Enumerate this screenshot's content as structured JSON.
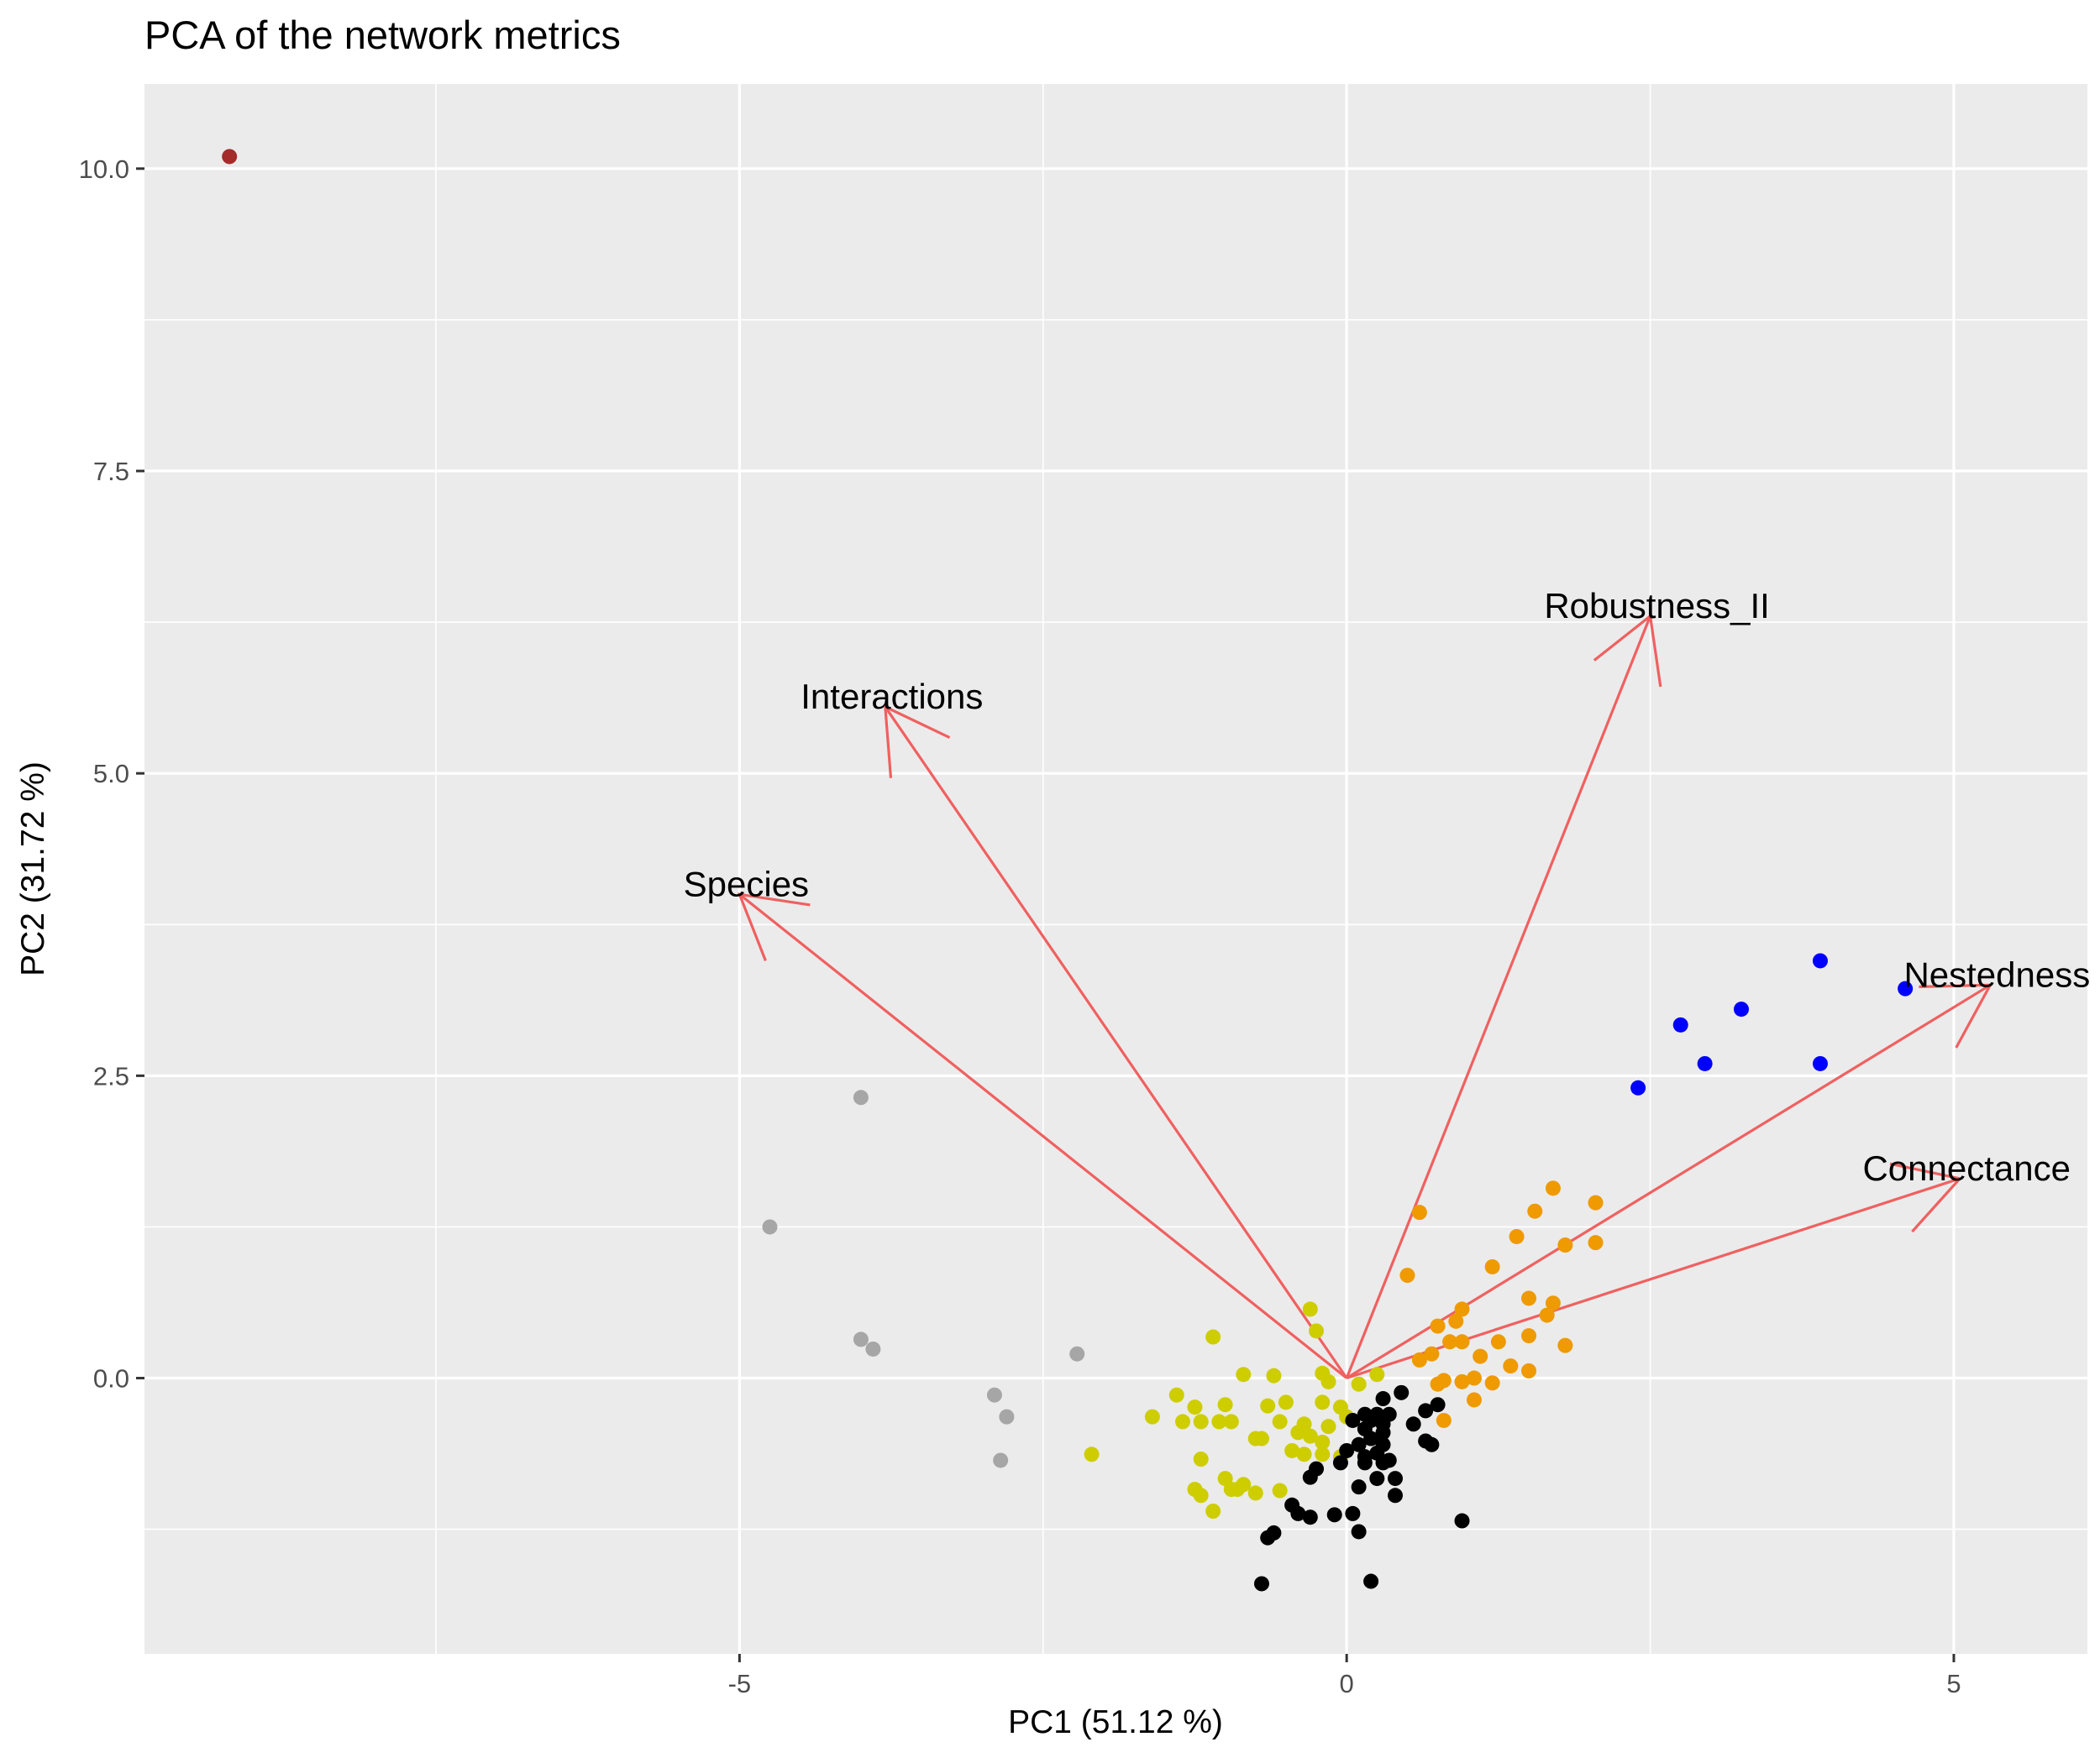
{
  "chart_data": {
    "type": "scatter",
    "title": "PCA of the network metrics",
    "xlabel": "PC1 (51.12 %)",
    "ylabel": "PC2 (31.72 %)",
    "xlim": [
      -9.9,
      6.1
    ],
    "ylim": [
      -2.28,
      10.7
    ],
    "x_ticks": [
      -5,
      0,
      5
    ],
    "x_tick_labels": [
      "-5",
      "0",
      "5"
    ],
    "y_ticks": [
      0.0,
      2.5,
      5.0,
      7.5,
      10.0
    ],
    "y_tick_labels": [
      "0.0",
      "2.5",
      "5.0",
      "7.5",
      "10.0"
    ],
    "grid": true,
    "legend": "none",
    "colors": {
      "panel_background": "#EBEBEB",
      "gridline": "#FFFFFF",
      "arrow": "#F06060",
      "brown": "#A52A2A",
      "gray": "#A6A6A6",
      "yellow": "#CDCD00",
      "black": "#000000",
      "orange": "#EE9A00",
      "blue": "#0000FF",
      "text": "#000000",
      "tick_text": "#4D4D4D"
    },
    "series": [
      {
        "color": "brown",
        "points": [
          [
            -9.2,
            10.1
          ]
        ]
      },
      {
        "color": "gray",
        "points": [
          [
            -4.0,
            2.32
          ],
          [
            -4.75,
            1.25
          ],
          [
            -4.0,
            0.32
          ],
          [
            -3.9,
            0.24
          ],
          [
            -2.22,
            0.2
          ],
          [
            -2.9,
            -0.14
          ],
          [
            -2.8,
            -0.32
          ],
          [
            -2.85,
            -0.68
          ]
        ]
      },
      {
        "color": "blue",
        "points": [
          [
            3.9,
            3.45
          ],
          [
            4.6,
            3.22
          ],
          [
            2.75,
            2.92
          ],
          [
            3.25,
            3.05
          ],
          [
            2.95,
            2.6
          ],
          [
            3.9,
            2.6
          ],
          [
            2.4,
            2.4
          ]
        ]
      },
      {
        "color": "orange",
        "points": [
          [
            0.6,
            1.37
          ],
          [
            1.7,
            1.57
          ],
          [
            1.55,
            1.38
          ],
          [
            2.05,
            1.45
          ],
          [
            1.4,
            1.17
          ],
          [
            1.8,
            1.1
          ],
          [
            2.05,
            1.12
          ],
          [
            1.2,
            0.92
          ],
          [
            0.5,
            0.85
          ],
          [
            0.95,
            0.57
          ],
          [
            1.5,
            0.66
          ],
          [
            1.7,
            0.62
          ],
          [
            0.75,
            0.43
          ],
          [
            0.9,
            0.47
          ],
          [
            1.65,
            0.52
          ],
          [
            0.85,
            0.3
          ],
          [
            0.95,
            0.3
          ],
          [
            1.25,
            0.3
          ],
          [
            1.5,
            0.35
          ],
          [
            1.8,
            0.27
          ],
          [
            0.7,
            0.2
          ],
          [
            0.6,
            0.15
          ],
          [
            1.1,
            0.18
          ],
          [
            1.35,
            0.1
          ],
          [
            1.5,
            0.06
          ],
          [
            0.75,
            -0.05
          ],
          [
            0.8,
            -0.02
          ],
          [
            0.95,
            -0.03
          ],
          [
            1.05,
            0.0
          ],
          [
            1.2,
            -0.04
          ],
          [
            1.05,
            -0.18
          ],
          [
            0.8,
            -0.35
          ]
        ]
      },
      {
        "color": "yellow",
        "points": [
          [
            -0.3,
            0.57
          ],
          [
            -0.25,
            0.39
          ],
          [
            -1.1,
            0.34
          ],
          [
            -0.85,
            0.03
          ],
          [
            -0.6,
            0.02
          ],
          [
            -0.2,
            0.04
          ],
          [
            -0.15,
            -0.03
          ],
          [
            0.1,
            -0.05
          ],
          [
            0.25,
            0.03
          ],
          [
            -1.4,
            -0.14
          ],
          [
            -1.25,
            -0.24
          ],
          [
            -1.6,
            -0.32
          ],
          [
            -1.35,
            -0.36
          ],
          [
            -1.2,
            -0.36
          ],
          [
            -1.05,
            -0.36
          ],
          [
            -0.95,
            -0.36
          ],
          [
            -1.0,
            -0.22
          ],
          [
            -0.65,
            -0.23
          ],
          [
            -0.5,
            -0.2
          ],
          [
            -0.2,
            -0.2
          ],
          [
            -0.05,
            -0.24
          ],
          [
            0.0,
            -0.32
          ],
          [
            -0.15,
            -0.4
          ],
          [
            -0.35,
            -0.38
          ],
          [
            -0.4,
            -0.45
          ],
          [
            -0.3,
            -0.48
          ],
          [
            -0.2,
            -0.53
          ],
          [
            -0.55,
            -0.36
          ],
          [
            -0.75,
            -0.5
          ],
          [
            -0.7,
            -0.5
          ],
          [
            -0.45,
            -0.6
          ],
          [
            -0.35,
            -0.63
          ],
          [
            -0.2,
            -0.63
          ],
          [
            -0.05,
            -0.65
          ],
          [
            -2.1,
            -0.63
          ],
          [
            -1.2,
            -0.67
          ],
          [
            -1.0,
            -0.83
          ],
          [
            -0.95,
            -0.92
          ],
          [
            -0.9,
            -0.92
          ],
          [
            -0.85,
            -0.88
          ],
          [
            -1.25,
            -0.92
          ],
          [
            -1.2,
            -0.97
          ],
          [
            -0.75,
            -0.95
          ],
          [
            -0.55,
            -0.93
          ],
          [
            -1.1,
            -1.1
          ]
        ]
      },
      {
        "color": "black",
        "points": [
          [
            0.45,
            -0.12
          ],
          [
            0.3,
            -0.17
          ],
          [
            0.75,
            -0.22
          ],
          [
            0.65,
            -0.27
          ],
          [
            0.15,
            -0.3
          ],
          [
            0.25,
            -0.3
          ],
          [
            0.35,
            -0.3
          ],
          [
            0.05,
            -0.35
          ],
          [
            0.2,
            -0.35
          ],
          [
            0.3,
            -0.38
          ],
          [
            0.55,
            -0.38
          ],
          [
            0.15,
            -0.42
          ],
          [
            0.3,
            -0.45
          ],
          [
            0.2,
            -0.5
          ],
          [
            0.1,
            -0.55
          ],
          [
            0.3,
            -0.55
          ],
          [
            0.0,
            -0.6
          ],
          [
            0.65,
            -0.52
          ],
          [
            0.7,
            -0.55
          ],
          [
            0.15,
            -0.65
          ],
          [
            0.25,
            -0.62
          ],
          [
            0.35,
            -0.68
          ],
          [
            -0.05,
            -0.7
          ],
          [
            0.15,
            -0.7
          ],
          [
            0.3,
            -0.7
          ],
          [
            -0.25,
            -0.75
          ],
          [
            0.25,
            -0.83
          ],
          [
            0.4,
            -0.83
          ],
          [
            -0.3,
            -0.82
          ],
          [
            0.1,
            -0.9
          ],
          [
            0.4,
            -0.97
          ],
          [
            -0.45,
            -1.05
          ],
          [
            -0.4,
            -1.12
          ],
          [
            -0.3,
            -1.15
          ],
          [
            -0.1,
            -1.13
          ],
          [
            0.05,
            -1.12
          ],
          [
            0.95,
            -1.18
          ],
          [
            0.1,
            -1.27
          ],
          [
            -0.6,
            -1.28
          ],
          [
            -0.65,
            -1.32
          ],
          [
            -0.7,
            -1.7
          ],
          [
            0.2,
            -1.68
          ]
        ]
      }
    ],
    "loadings": [
      {
        "name": "Species",
        "x": -5.0,
        "y": 4.0
      },
      {
        "name": "Interactions",
        "x": -3.8,
        "y": 5.55
      },
      {
        "name": "Robustness_II",
        "x": 2.5,
        "y": 6.3
      },
      {
        "name": "Nestedness",
        "x": 5.3,
        "y": 3.25
      },
      {
        "name": "Connectance",
        "x": 5.05,
        "y": 1.65
      }
    ]
  }
}
